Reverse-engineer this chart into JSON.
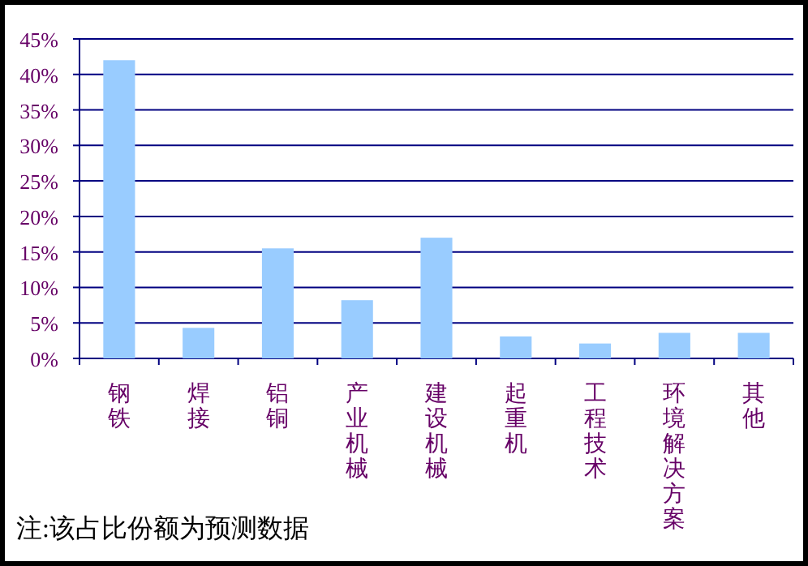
{
  "chart_data": {
    "type": "bar",
    "categories": [
      "钢铁",
      "焊接",
      "铝铜",
      "产业机械",
      "建设机械",
      "起重机",
      "工程技术",
      "环境解决方案",
      "其他"
    ],
    "values": [
      42,
      4.3,
      15.5,
      8.2,
      17,
      3.1,
      2.1,
      3.6,
      3.6
    ],
    "color": "#99ccff",
    "ylim": [
      0,
      45
    ],
    "yticks": [
      {
        "value": 0,
        "label": "0%"
      },
      {
        "value": 5,
        "label": "5%"
      },
      {
        "value": 10,
        "label": "10%"
      },
      {
        "value": 15,
        "label": "15%"
      },
      {
        "value": 20,
        "label": "20%"
      },
      {
        "value": 25,
        "label": "25%"
      },
      {
        "value": 30,
        "label": "30%"
      },
      {
        "value": 35,
        "label": "35%"
      },
      {
        "value": 40,
        "label": "40%"
      },
      {
        "value": 45,
        "label": "45%"
      }
    ],
    "grid": "y",
    "annotations": [
      "注:该占比份额为预测数据"
    ]
  }
}
